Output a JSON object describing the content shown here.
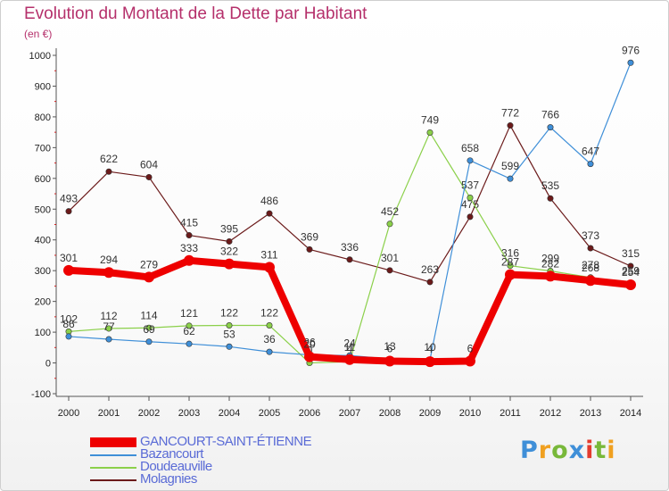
{
  "title": "Evolution du Montant de la Dette par Habitant",
  "unit": "(en €)",
  "logo": {
    "letters": [
      {
        "ch": "P",
        "color": "#3f8fd8"
      },
      {
        "ch": "r",
        "color": "#f0a020"
      },
      {
        "ch": "o",
        "color": "#78b83a"
      },
      {
        "ch": "x",
        "color": "#3f8fd8"
      },
      {
        "ch": "i",
        "color": "#e33b2e"
      },
      {
        "ch": "t",
        "color": "#78b83a"
      },
      {
        "ch": "i",
        "color": "#f0a020"
      }
    ]
  },
  "chart_data": {
    "type": "line",
    "title": "Evolution du Montant de la Dette par Habitant",
    "ylabel": "(en €)",
    "ylim": [
      -100,
      1000
    ],
    "yticks": [
      -100,
      0,
      100,
      200,
      300,
      400,
      500,
      600,
      700,
      800,
      900,
      1000
    ],
    "x": [
      "2000",
      "2001",
      "2002",
      "2003",
      "2004",
      "2005",
      "2006",
      "2007",
      "2008",
      "2009",
      "2010",
      "2011",
      "2012",
      "2013",
      "2014"
    ],
    "grid": false,
    "legend_position": "bottom-left",
    "series": [
      {
        "name": "Molagnies",
        "color": "#6b1a1a",
        "values": [
          493,
          622,
          604,
          415,
          395,
          486,
          369,
          336,
          301,
          263,
          475,
          772,
          535,
          373,
          315
        ],
        "labels": [
          "493",
          "622",
          "604",
          "415",
          "395",
          "486",
          "369",
          "336",
          "301",
          "263",
          "475",
          "772",
          "535",
          "373",
          "315"
        ]
      },
      {
        "name": "Doudeauville",
        "color": "#8bd04a",
        "values": [
          102,
          112,
          114,
          121,
          122,
          122,
          0,
          4,
          452,
          749,
          537,
          316,
          299,
          278,
          259
        ],
        "labels": [
          "102",
          "112",
          "114",
          "121",
          "122",
          "122",
          "0",
          "4",
          "452",
          "749",
          "537",
          "316",
          "299",
          "278",
          "259"
        ]
      },
      {
        "name": "Bazancourt",
        "color": "#3f8fd8",
        "values": [
          86,
          77,
          69,
          62,
          53,
          36,
          26,
          24,
          13,
          10,
          658,
          599,
          766,
          647,
          976
        ],
        "labels": [
          "86",
          "77",
          "69",
          "62",
          "53",
          "36",
          "26",
          "24",
          "13",
          "10",
          "658",
          "599",
          "766",
          "647",
          "976"
        ]
      },
      {
        "name": "GANCOURT-SAINT-ÉTIENNE",
        "color": "#ee0000",
        "values": [
          301,
          294,
          279,
          333,
          322,
          311,
          20,
          11,
          6,
          4,
          6,
          287,
          282,
          268,
          254
        ],
        "labels": [
          "301",
          "294",
          "279",
          "333",
          "322",
          "311",
          "20",
          "11",
          "6",
          "4",
          "6",
          "287",
          "282",
          "268",
          "254"
        ]
      }
    ]
  }
}
